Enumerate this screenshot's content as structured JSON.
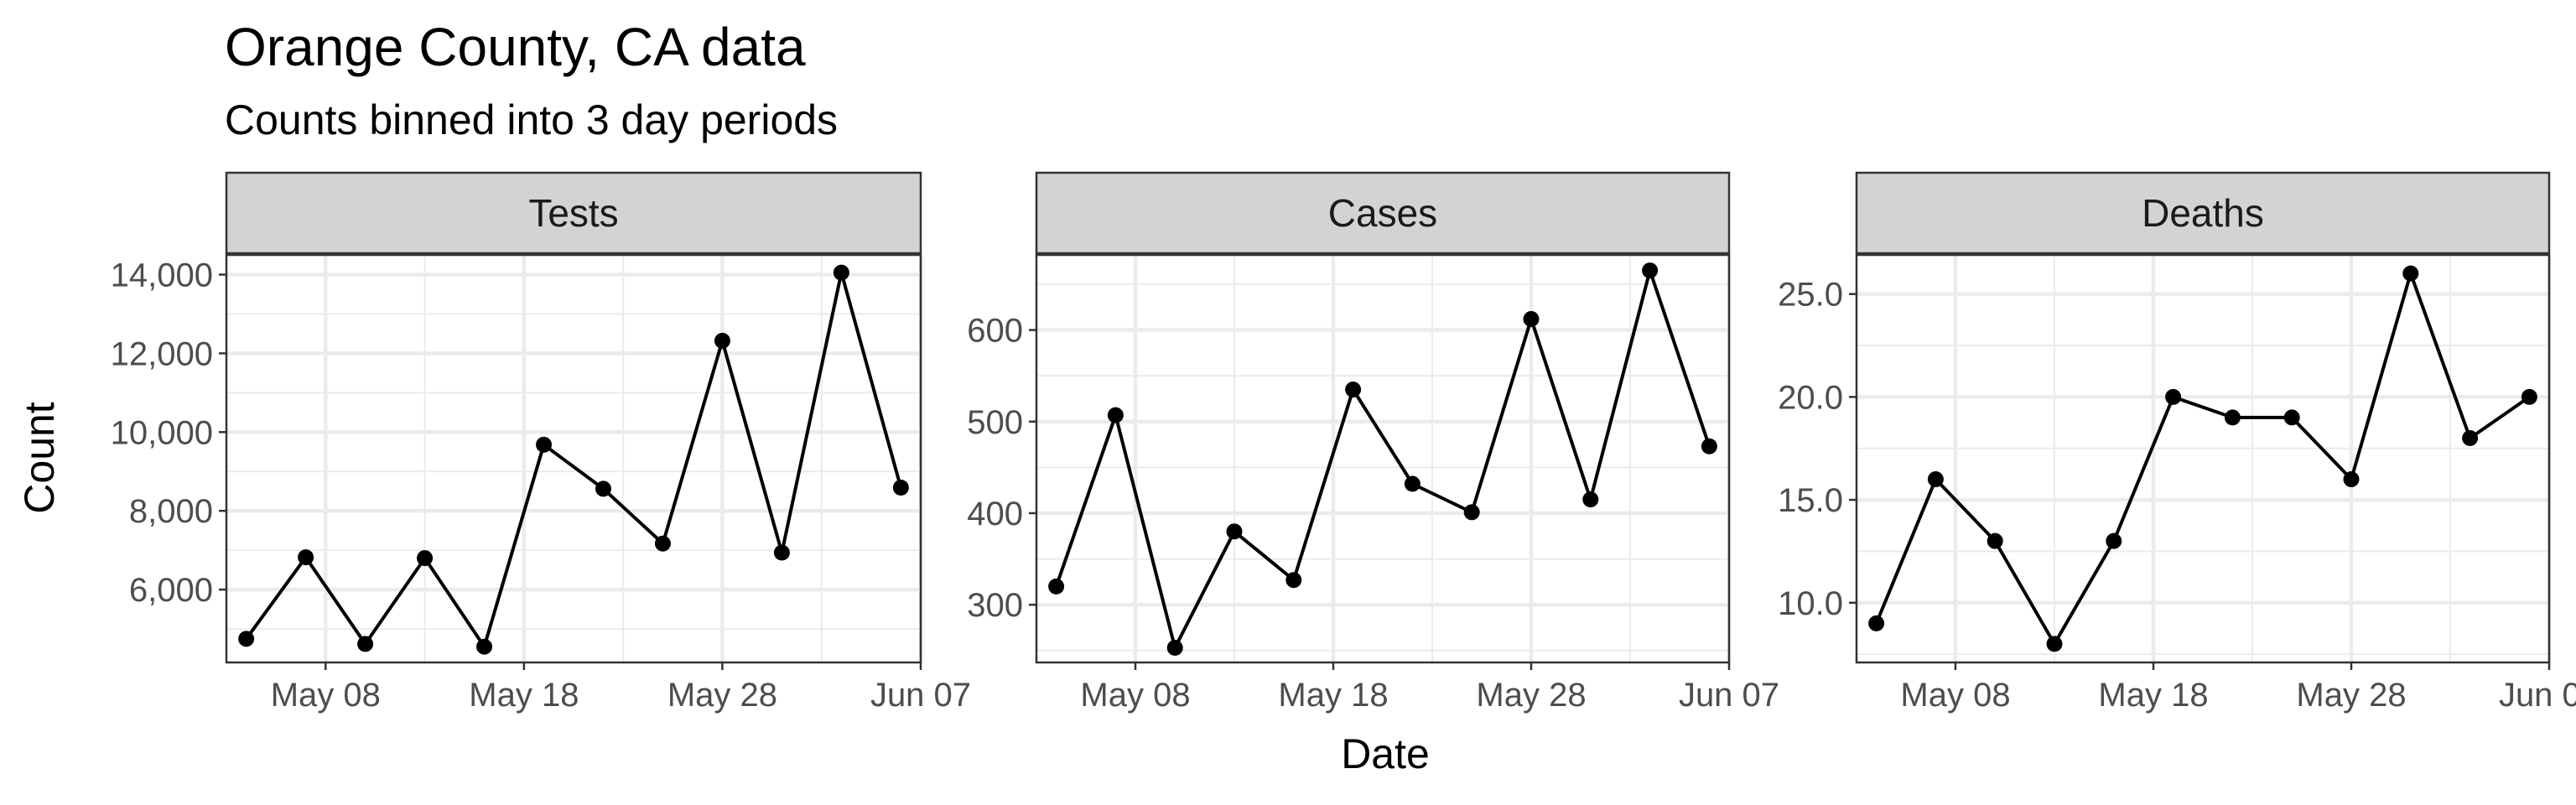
{
  "title": "Orange County, CA data",
  "subtitle": "Counts binned into 3 day periods",
  "xlabel": "Date",
  "ylabel": "Count",
  "colors": {
    "line": "#000000",
    "point": "#000000",
    "strip_fill": "#d3d3d3",
    "grid": "#ebebeb",
    "border": "#333333"
  },
  "chart_data": [
    {
      "type": "line",
      "panel": "Tests",
      "x": [
        "2020-05-04",
        "2020-05-07",
        "2020-05-10",
        "2020-05-13",
        "2020-05-16",
        "2020-05-19",
        "2020-05-22",
        "2020-05-25",
        "2020-05-28",
        "2020-05-31",
        "2020-06-03",
        "2020-06-06"
      ],
      "y": [
        4750,
        6820,
        4620,
        6800,
        4550,
        9680,
        8560,
        7170,
        12320,
        6940,
        14050,
        8590
      ],
      "xlim": [
        "2020-05-03",
        "2020-06-07"
      ],
      "ylim": [
        4150,
        14500
      ],
      "x_ticks": [
        "2020-05-08",
        "2020-05-18",
        "2020-05-28",
        "2020-06-07"
      ],
      "x_tick_labels": [
        "May 08",
        "May 18",
        "May 28",
        "Jun 07"
      ],
      "y_ticks": [
        6000,
        8000,
        10000,
        12000,
        14000
      ],
      "y_tick_labels": [
        "6,000",
        "8,000",
        "10,000",
        "12,000",
        "14,000"
      ],
      "grid": true
    },
    {
      "type": "line",
      "panel": "Cases",
      "x": [
        "2020-05-04",
        "2020-05-07",
        "2020-05-10",
        "2020-05-13",
        "2020-05-16",
        "2020-05-19",
        "2020-05-22",
        "2020-05-25",
        "2020-05-28",
        "2020-05-31",
        "2020-06-03",
        "2020-06-06"
      ],
      "y": [
        320,
        507,
        253,
        380,
        327,
        535,
        432,
        401,
        612,
        415,
        665,
        473
      ],
      "xlim": [
        "2020-05-03",
        "2020-06-07"
      ],
      "ylim": [
        237,
        682
      ],
      "x_ticks": [
        "2020-05-08",
        "2020-05-18",
        "2020-05-28",
        "2020-06-07"
      ],
      "x_tick_labels": [
        "May 08",
        "May 18",
        "May 28",
        "Jun 07"
      ],
      "y_ticks": [
        300,
        400,
        500,
        600
      ],
      "y_tick_labels": [
        "300",
        "400",
        "500",
        "600"
      ],
      "grid": true
    },
    {
      "type": "line",
      "panel": "Deaths",
      "x": [
        "2020-05-04",
        "2020-05-07",
        "2020-05-10",
        "2020-05-13",
        "2020-05-16",
        "2020-05-19",
        "2020-05-22",
        "2020-05-25",
        "2020-05-28",
        "2020-05-31",
        "2020-06-03",
        "2020-06-06"
      ],
      "y": [
        9,
        16,
        13,
        8,
        13,
        20,
        19,
        19,
        16,
        26,
        18,
        20
      ],
      "xlim": [
        "2020-05-03",
        "2020-06-07"
      ],
      "ylim": [
        7.1,
        26.9
      ],
      "x_ticks": [
        "2020-05-08",
        "2020-05-18",
        "2020-05-28",
        "2020-06-07"
      ],
      "x_tick_labels": [
        "May 08",
        "May 18",
        "May 28",
        "Jun 07"
      ],
      "y_ticks": [
        10,
        15,
        20,
        25
      ],
      "y_tick_labels": [
        "10.0",
        "15.0",
        "20.0",
        "25.0"
      ],
      "grid": true
    }
  ]
}
